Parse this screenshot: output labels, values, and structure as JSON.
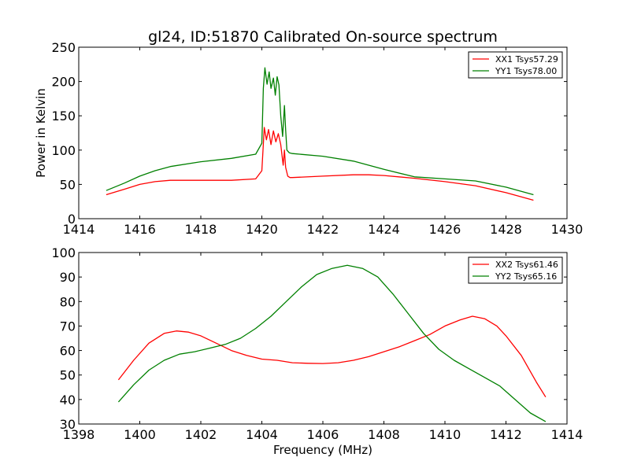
{
  "figure": {
    "title": "gl24, ID:51870 Calibrated On-source spectrum"
  },
  "colors": {
    "xx": "#ff0000",
    "yy": "#008000",
    "axes": "#000000",
    "background": "#ffffff"
  },
  "chart_data": [
    {
      "type": "line",
      "title": "gl24, ID:51870 Calibrated On-source spectrum",
      "xlabel": "",
      "ylabel": "Power in Kelvin",
      "xlim": [
        1414,
        1430
      ],
      "ylim": [
        0,
        250
      ],
      "xticks": [
        "1414",
        "1416",
        "1418",
        "1420",
        "1422",
        "1424",
        "1426",
        "1428",
        "1430"
      ],
      "yticks": [
        "0",
        "50",
        "100",
        "150",
        "200",
        "250"
      ],
      "grid": false,
      "legend": "top-right",
      "series": [
        {
          "name": "XX1 Tsys57.29",
          "color": "#ff0000",
          "x": [
            1414.9,
            1415.5,
            1416.0,
            1416.5,
            1417.0,
            1418.0,
            1419.0,
            1419.8,
            1420.0,
            1420.08,
            1420.15,
            1420.22,
            1420.3,
            1420.38,
            1420.46,
            1420.54,
            1420.62,
            1420.7,
            1420.74,
            1420.78,
            1420.85,
            1420.92,
            1421.0,
            1422.0,
            1423.0,
            1423.5,
            1424.0,
            1425.0,
            1426.0,
            1427.0,
            1428.0,
            1428.9
          ],
          "values": [
            35,
            43,
            50,
            54,
            56,
            56,
            56,
            58,
            70,
            133,
            115,
            130,
            108,
            128,
            112,
            124,
            108,
            78,
            100,
            75,
            62,
            60,
            60,
            62,
            64,
            64,
            63,
            59,
            54,
            48,
            38,
            27
          ]
        },
        {
          "name": "YY1 Tsys78.00",
          "color": "#008000",
          "x": [
            1414.9,
            1415.5,
            1416.0,
            1416.5,
            1417.0,
            1418.0,
            1419.0,
            1419.8,
            1420.0,
            1420.05,
            1420.1,
            1420.17,
            1420.24,
            1420.3,
            1420.38,
            1420.44,
            1420.5,
            1420.56,
            1420.62,
            1420.68,
            1420.74,
            1420.78,
            1420.82,
            1420.9,
            1421.0,
            1422.0,
            1423.0,
            1424.0,
            1425.0,
            1426.0,
            1427.0,
            1428.0,
            1428.9
          ],
          "values": [
            41,
            52,
            62,
            70,
            76,
            83,
            88,
            94,
            110,
            190,
            220,
            196,
            214,
            190,
            205,
            180,
            207,
            195,
            150,
            120,
            165,
            130,
            100,
            96,
            95,
            91,
            84,
            72,
            61,
            58,
            55,
            46,
            35
          ]
        }
      ]
    },
    {
      "type": "line",
      "title": "",
      "xlabel": "Frequency (MHz)",
      "ylabel": "",
      "xlim": [
        1398,
        1414
      ],
      "ylim": [
        30,
        100
      ],
      "xticks": [
        "1398",
        "1400",
        "1402",
        "1404",
        "1406",
        "1408",
        "1410",
        "1412",
        "1414"
      ],
      "yticks": [
        "30",
        "40",
        "50",
        "60",
        "70",
        "80",
        "90",
        "100"
      ],
      "grid": false,
      "legend": "top-right",
      "series": [
        {
          "name": "XX2 Tsys61.46",
          "color": "#ff0000",
          "x": [
            1399.3,
            1399.8,
            1400.3,
            1400.8,
            1401.2,
            1401.6,
            1402.0,
            1402.5,
            1403.0,
            1403.5,
            1404.0,
            1404.5,
            1405.0,
            1405.5,
            1406.0,
            1406.5,
            1407.0,
            1407.5,
            1408.0,
            1408.5,
            1409.0,
            1409.5,
            1410.0,
            1410.5,
            1410.9,
            1411.3,
            1411.7,
            1412.0,
            1412.5,
            1413.0,
            1413.3
          ],
          "values": [
            48,
            56,
            63,
            67,
            68,
            67.5,
            66,
            63,
            60,
            58,
            56.5,
            56,
            55,
            54.8,
            54.7,
            55,
            56,
            57.5,
            59.5,
            61.5,
            64,
            66.5,
            70,
            72.5,
            74,
            73,
            70,
            66,
            58,
            47,
            41
          ]
        },
        {
          "name": "YY2 Tsys65.16",
          "color": "#008000",
          "x": [
            1399.3,
            1399.8,
            1400.3,
            1400.8,
            1401.3,
            1401.8,
            1402.3,
            1402.8,
            1403.3,
            1403.8,
            1404.3,
            1404.8,
            1405.3,
            1405.8,
            1406.3,
            1406.8,
            1407.3,
            1407.8,
            1408.3,
            1408.8,
            1409.3,
            1409.8,
            1410.3,
            1410.8,
            1411.3,
            1411.8,
            1412.3,
            1412.8,
            1413.3
          ],
          "values": [
            39,
            46,
            52,
            56,
            58.5,
            59.5,
            61,
            62.5,
            65,
            69,
            74,
            80,
            86,
            91,
            93.5,
            94.8,
            93.5,
            90,
            83,
            75,
            67,
            60.5,
            56,
            52.5,
            49,
            45.5,
            40,
            34.5,
            31
          ]
        }
      ]
    }
  ]
}
